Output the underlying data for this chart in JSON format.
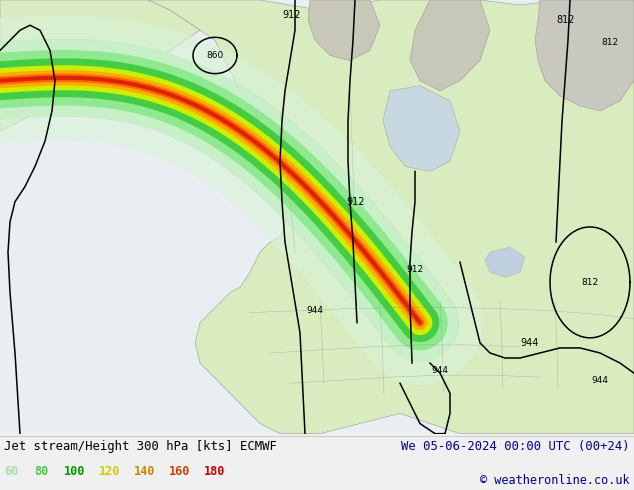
{
  "title_left": "Jet stream/Height 300 hPa [kts] ECMWF",
  "title_right": "We 05-06-2024 00:00 UTC (00+24)",
  "copyright": "© weatheronline.co.uk",
  "legend_values": [
    60,
    80,
    100,
    120,
    140,
    160,
    180
  ],
  "legend_colors_text": [
    "#aaddaa",
    "#44cc44",
    "#009900",
    "#cccc00",
    "#cc8800",
    "#cc4400",
    "#cc0000"
  ],
  "figsize": [
    6.34,
    4.9
  ],
  "dpi": 100,
  "ocean_color": "#d8e8f0",
  "land_color": "#e8f0d8",
  "canada_land": "#d8e8c0",
  "us_land": "#e8f0d8",
  "jet_colors": [
    "#c8f0c8",
    "#90e890",
    "#44cc44",
    "#ccee00",
    "#ffaa00",
    "#ff6600",
    "#dd2200"
  ],
  "jet_widths": [
    55,
    40,
    28,
    18,
    11,
    6,
    3
  ],
  "contour_color": "#000000",
  "bottom_bg": "#f0f0f0",
  "map_border_color": "#888888"
}
